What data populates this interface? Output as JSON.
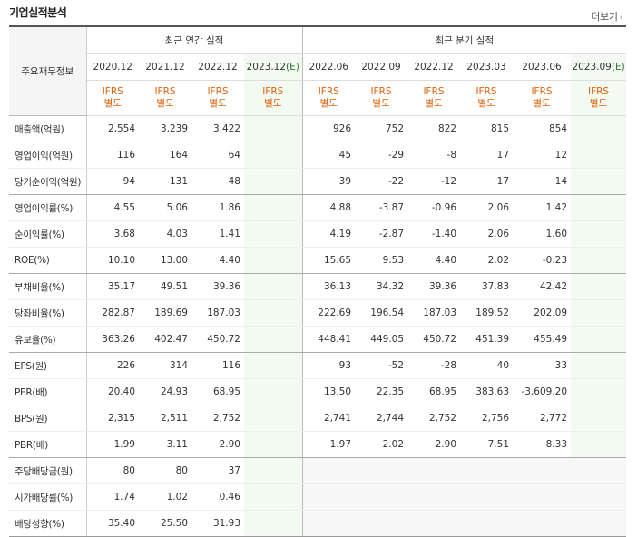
{
  "title": "기업실적분석",
  "more_link": "더보기",
  "more_chevron": "›",
  "row_header_title": "주요재무정보",
  "annual_header": "최근 연간 실적",
  "quarter_header": "최근 분기 실적",
  "annual_periods": [
    {
      "period": "2020.12",
      "estimate_tag": ""
    },
    {
      "period": "2021.12",
      "estimate_tag": ""
    },
    {
      "period": "2022.12",
      "estimate_tag": ""
    },
    {
      "period": "2023.12",
      "estimate_tag": "(E)"
    }
  ],
  "quarter_periods": [
    {
      "period": "2022.06",
      "estimate_tag": ""
    },
    {
      "period": "2022.09",
      "estimate_tag": ""
    },
    {
      "period": "2022.12",
      "estimate_tag": ""
    },
    {
      "period": "2023.03",
      "estimate_tag": ""
    },
    {
      "period": "2023.06",
      "estimate_tag": ""
    },
    {
      "period": "2023.09",
      "estimate_tag": "(E)"
    }
  ],
  "ifrs_line1": "IFRS",
  "ifrs_line2": "별도",
  "colors": {
    "negative": "#e0201c",
    "ifrs": "#e0620a",
    "estimate_bg": "#f3faf2",
    "estimate_tag": "#2c7a2c"
  },
  "rows": [
    {
      "label": "매출액(억원)",
      "annual": [
        "2,554",
        "3,239",
        "3,422",
        ""
      ],
      "quarter": [
        "926",
        "752",
        "822",
        "815",
        "854",
        ""
      ]
    },
    {
      "label": "영업이익(억원)",
      "annual": [
        "116",
        "164",
        "64",
        ""
      ],
      "quarter": [
        "45",
        "-29",
        "-8",
        "17",
        "12",
        ""
      ]
    },
    {
      "label": "당기순이익(억원)",
      "annual": [
        "94",
        "131",
        "48",
        ""
      ],
      "quarter": [
        "39",
        "-22",
        "-12",
        "17",
        "14",
        ""
      ]
    },
    {
      "label": "영업이익률(%)",
      "annual": [
        "4.55",
        "5.06",
        "1.86",
        ""
      ],
      "quarter": [
        "4.88",
        "-3.87",
        "-0.96",
        "2.06",
        "1.42",
        ""
      ]
    },
    {
      "label": "순이익률(%)",
      "annual": [
        "3.68",
        "4.03",
        "1.41",
        ""
      ],
      "quarter": [
        "4.19",
        "-2.87",
        "-1.40",
        "2.06",
        "1.60",
        ""
      ]
    },
    {
      "label": "ROE(%)",
      "annual": [
        "10.10",
        "13.00",
        "4.40",
        ""
      ],
      "quarter": [
        "15.65",
        "9.53",
        "4.40",
        "2.02",
        "-0.23",
        ""
      ]
    },
    {
      "label": "부채비율(%)",
      "annual": [
        "35.17",
        "49.51",
        "39.36",
        ""
      ],
      "quarter": [
        "36.13",
        "34.32",
        "39.36",
        "37.83",
        "42.42",
        ""
      ]
    },
    {
      "label": "당좌비율(%)",
      "annual": [
        "282.87",
        "189.69",
        "187.03",
        ""
      ],
      "quarter": [
        "222.69",
        "196.54",
        "187.03",
        "189.52",
        "202.09",
        ""
      ]
    },
    {
      "label": "유보율(%)",
      "annual": [
        "363.26",
        "402.47",
        "450.72",
        ""
      ],
      "quarter": [
        "448.41",
        "449.05",
        "450.72",
        "451.39",
        "455.49",
        ""
      ]
    },
    {
      "label": "EPS(원)",
      "annual": [
        "226",
        "314",
        "116",
        ""
      ],
      "quarter": [
        "93",
        "-52",
        "-28",
        "40",
        "33",
        ""
      ]
    },
    {
      "label": "PER(배)",
      "annual": [
        "20.40",
        "24.93",
        "68.95",
        ""
      ],
      "quarter": [
        "13.50",
        "22.35",
        "68.95",
        "383.63",
        "-3,609.20",
        ""
      ]
    },
    {
      "label": "BPS(원)",
      "annual": [
        "2,315",
        "2,511",
        "2,752",
        ""
      ],
      "quarter": [
        "2,741",
        "2,744",
        "2,752",
        "2,756",
        "2,772",
        ""
      ]
    },
    {
      "label": "PBR(배)",
      "annual": [
        "1.99",
        "3.11",
        "2.90",
        ""
      ],
      "quarter": [
        "1.97",
        "2.02",
        "2.90",
        "7.51",
        "8.33",
        ""
      ]
    },
    {
      "label": "주당배당금(원)",
      "annual": [
        "80",
        "80",
        "37",
        ""
      ],
      "quarter": [
        "",
        "",
        "",
        "",
        "",
        ""
      ]
    },
    {
      "label": "시가배당률(%)",
      "annual": [
        "1.74",
        "1.02",
        "0.46",
        ""
      ],
      "quarter": [
        "",
        "",
        "",
        "",
        "",
        ""
      ]
    },
    {
      "label": "배당성향(%)",
      "annual": [
        "35.40",
        "25.50",
        "31.93",
        ""
      ],
      "quarter": [
        "",
        "",
        "",
        "",
        "",
        ""
      ]
    }
  ]
}
